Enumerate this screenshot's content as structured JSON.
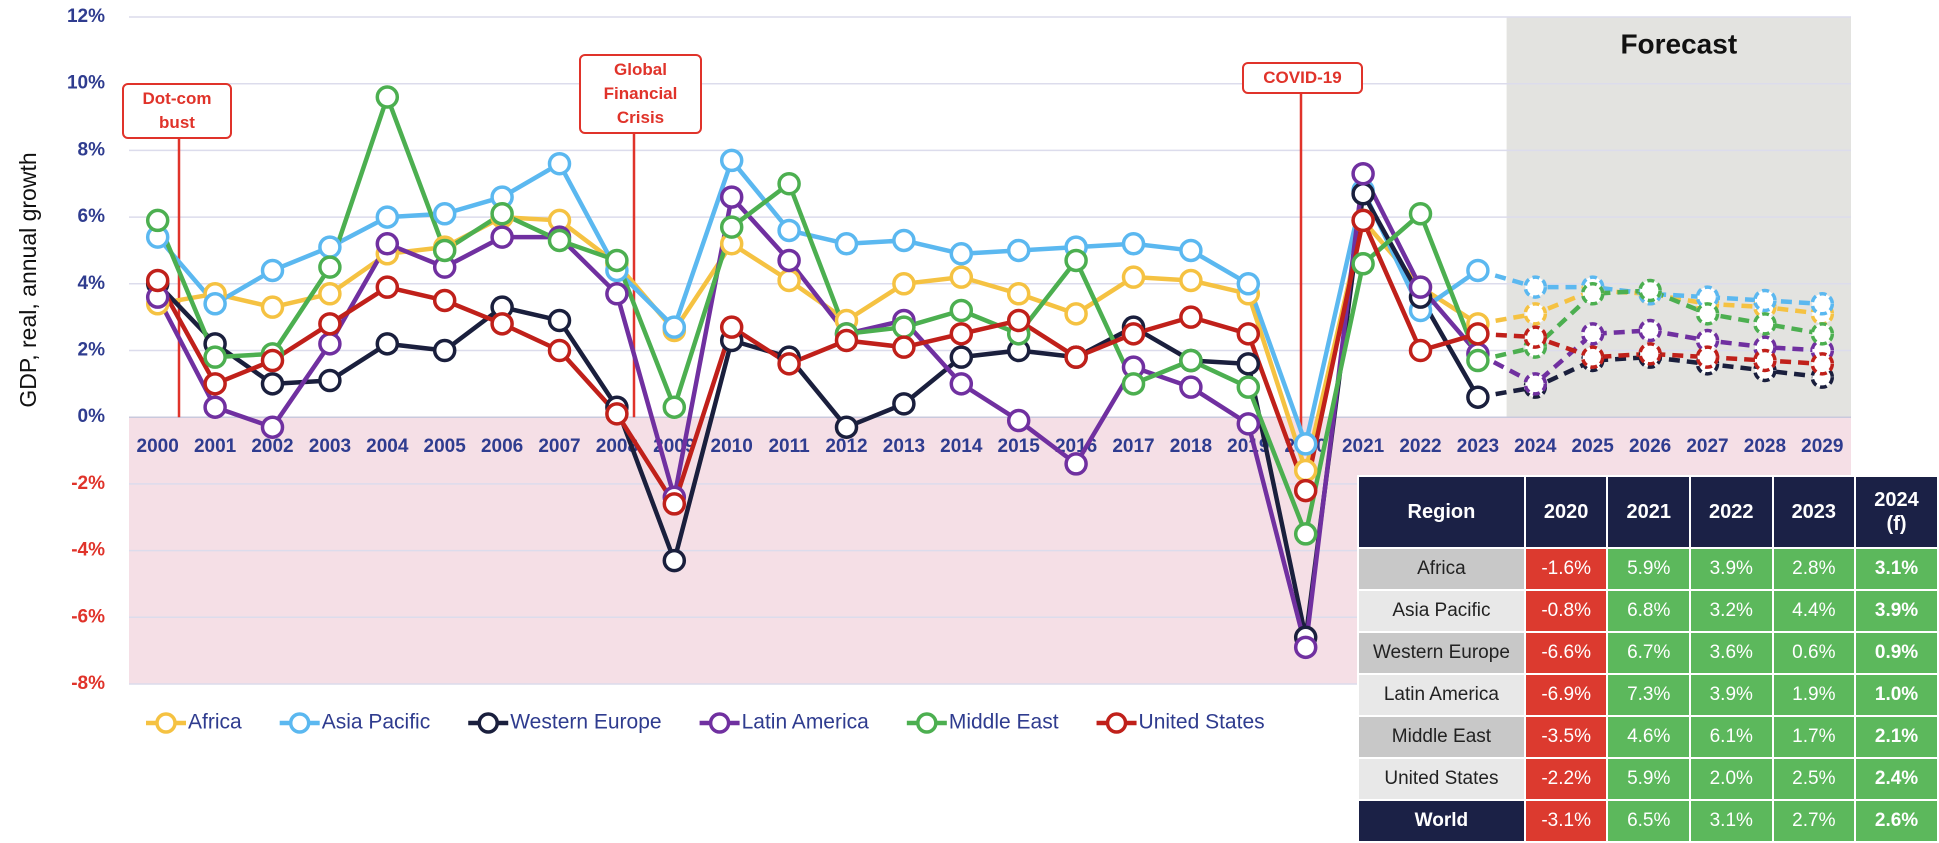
{
  "chart_data": {
    "type": "line",
    "y_label": "GDP, real, annual growth",
    "categories": [
      "2000",
      "2001",
      "2002",
      "2003",
      "2004",
      "2005",
      "2006",
      "2007",
      "2008",
      "2009",
      "2010",
      "2011",
      "2012",
      "2013",
      "2014",
      "2015",
      "2016",
      "2017",
      "2018",
      "2019",
      "2020",
      "2021",
      "2022",
      "2023",
      "2024",
      "2025",
      "2026",
      "2027",
      "2028",
      "2029"
    ],
    "series": [
      {
        "name": "Africa",
        "color": "#f5c242",
        "values": [
          3.4,
          3.7,
          3.3,
          3.7,
          4.9,
          5.1,
          6.0,
          5.9,
          4.6,
          2.6,
          5.2,
          4.1,
          2.9,
          4.0,
          4.2,
          3.7,
          3.1,
          4.2,
          4.1,
          3.7,
          -1.6,
          5.9,
          3.9,
          2.8,
          3.1,
          3.8,
          3.7,
          3.4,
          3.3,
          3.1
        ]
      },
      {
        "name": "Asia Pacific",
        "color": "#5bb8f0",
        "values": [
          5.4,
          3.4,
          4.4,
          5.1,
          6.0,
          6.1,
          6.6,
          7.6,
          4.4,
          2.7,
          7.7,
          5.6,
          5.2,
          5.3,
          4.9,
          5.0,
          5.1,
          5.2,
          5.0,
          4.0,
          -0.8,
          6.8,
          3.2,
          4.4,
          3.9,
          3.9,
          3.7,
          3.6,
          3.5,
          3.4
        ]
      },
      {
        "name": "Western Europe",
        "color": "#1a1f3d",
        "values": [
          4.0,
          2.2,
          1.0,
          1.1,
          2.2,
          2.0,
          3.3,
          2.9,
          0.3,
          -4.3,
          2.3,
          1.8,
          -0.3,
          0.4,
          1.8,
          2.0,
          1.8,
          2.7,
          1.7,
          1.6,
          -6.6,
          6.7,
          3.6,
          0.6,
          0.9,
          1.7,
          1.8,
          1.6,
          1.4,
          1.2
        ]
      },
      {
        "name": "Latin America",
        "color": "#7030a0",
        "values": [
          3.6,
          0.3,
          -0.3,
          2.2,
          5.2,
          4.5,
          5.4,
          5.4,
          3.7,
          -2.4,
          6.6,
          4.7,
          2.5,
          2.9,
          1.0,
          -0.1,
          -1.4,
          1.5,
          0.9,
          -0.2,
          -6.9,
          7.3,
          3.9,
          1.9,
          1.0,
          2.5,
          2.6,
          2.3,
          2.1,
          2.0
        ]
      },
      {
        "name": "Middle East",
        "color": "#4caf50",
        "values": [
          5.9,
          1.8,
          1.9,
          4.5,
          9.6,
          5.0,
          6.1,
          5.3,
          4.7,
          0.3,
          5.7,
          7.0,
          2.5,
          2.7,
          3.2,
          2.5,
          4.7,
          1.0,
          1.7,
          0.9,
          -3.5,
          4.6,
          6.1,
          1.7,
          2.1,
          3.7,
          3.8,
          3.1,
          2.8,
          2.5
        ]
      },
      {
        "name": "United States",
        "color": "#c0201a",
        "values": [
          4.1,
          1.0,
          1.7,
          2.8,
          3.9,
          3.5,
          2.8,
          2.0,
          0.1,
          -2.6,
          2.7,
          1.6,
          2.3,
          2.1,
          2.5,
          2.9,
          1.8,
          2.5,
          3.0,
          2.5,
          -2.2,
          5.9,
          2.0,
          2.5,
          2.4,
          1.8,
          1.9,
          1.8,
          1.7,
          1.6
        ]
      }
    ],
    "ylim": [
      -8,
      12
    ],
    "yticks": [
      {
        "value": -8,
        "label": "-8%"
      },
      {
        "value": -6,
        "label": "-6%"
      },
      {
        "value": -4,
        "label": "-4%"
      },
      {
        "value": -2,
        "label": "-2%"
      },
      {
        "value": 0,
        "label": "0%"
      },
      {
        "value": 2,
        "label": "2%"
      },
      {
        "value": 4,
        "label": "4%"
      },
      {
        "value": 6,
        "label": "6%"
      },
      {
        "value": 8,
        "label": "8%"
      },
      {
        "value": 10,
        "label": "10%"
      },
      {
        "value": 12,
        "label": "12%"
      }
    ],
    "grid": true,
    "forecast": {
      "label": "Forecast",
      "start": "2024"
    },
    "annotations": [
      {
        "text": "Dot-com bust",
        "x": "2000"
      },
      {
        "text": "Global Financial Crisis",
        "x": "2008"
      },
      {
        "text": "COVID-19",
        "x": "2020"
      }
    ]
  },
  "table": {
    "header": [
      "Region",
      "2020",
      "2021",
      "2022",
      "2023",
      "2024 (f)"
    ],
    "rows": [
      [
        "Africa",
        "-1.6%",
        "5.9%",
        "3.9%",
        "2.8%",
        "3.1%"
      ],
      [
        "Asia Pacific",
        "-0.8%",
        "6.8%",
        "3.2%",
        "4.4%",
        "3.9%"
      ],
      [
        "Western Europe",
        "-6.6%",
        "6.7%",
        "3.6%",
        "0.6%",
        "0.9%"
      ],
      [
        "Latin America",
        "-6.9%",
        "7.3%",
        "3.9%",
        "1.9%",
        "1.0%"
      ],
      [
        "Middle East",
        "-3.5%",
        "4.6%",
        "6.1%",
        "1.7%",
        "2.1%"
      ],
      [
        "United States",
        "-2.2%",
        "5.9%",
        "2.0%",
        "2.5%",
        "2.4%"
      ],
      [
        "World",
        "-3.1%",
        "6.5%",
        "3.1%",
        "2.7%",
        "2.6%"
      ]
    ]
  }
}
